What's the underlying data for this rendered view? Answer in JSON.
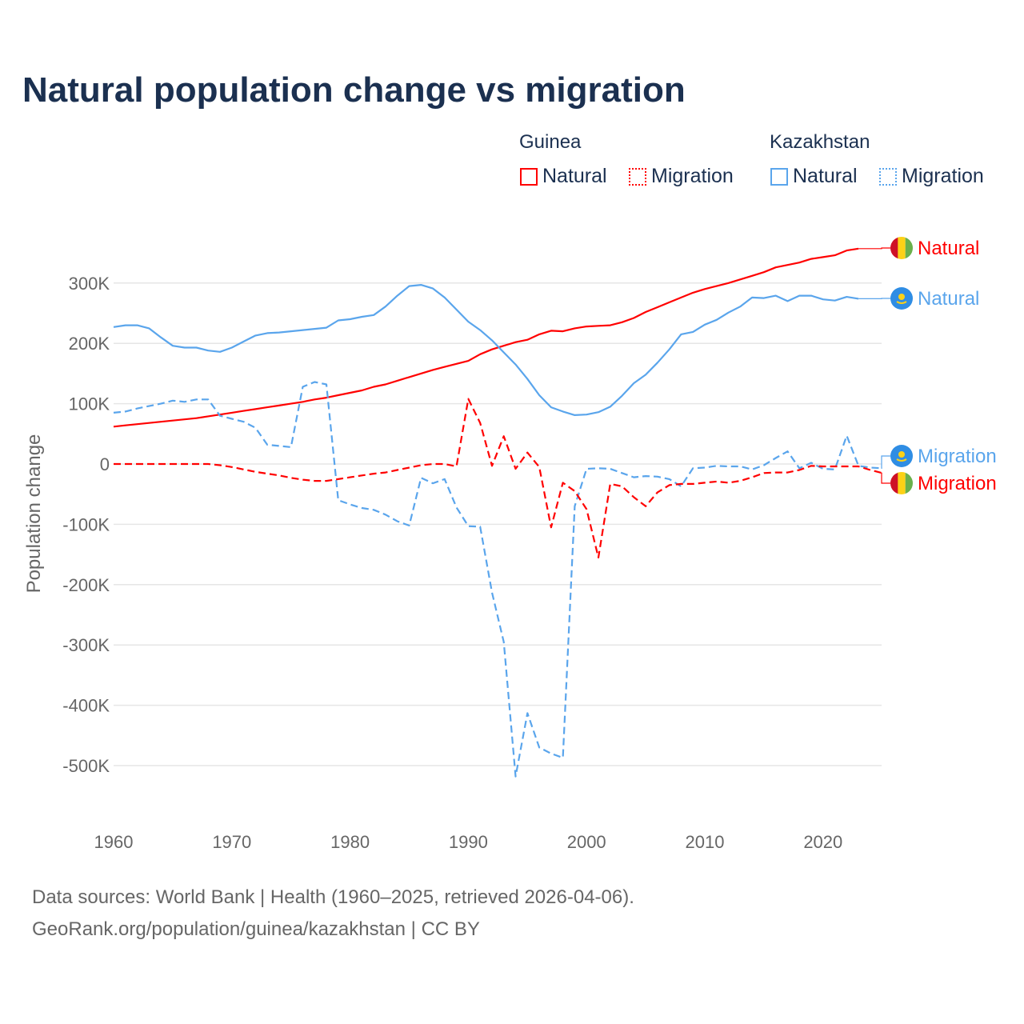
{
  "title": "Natural population change vs migration",
  "legend": {
    "groups": [
      {
        "name": "Guinea",
        "items": [
          "Natural",
          "Migration"
        ]
      },
      {
        "name": "Kazakhstan",
        "items": [
          "Natural",
          "Migration"
        ]
      }
    ]
  },
  "colors": {
    "guinea": "#ff0000",
    "kazakhstan": "#5aa5ec",
    "title": "#1b3050",
    "grid": "#e6e6e6"
  },
  "footer": {
    "line1": "Data sources: World Bank | Health (1960–2025, retrieved 2026-04-06).",
    "line2": "GeoRank.org/population/guinea/kazakhstan | CC BY"
  },
  "chart_data": {
    "type": "line",
    "title": "Natural population change vs migration",
    "xlabel": "",
    "ylabel": "Population change",
    "xlim": [
      1960,
      2025
    ],
    "ylim": [
      -600000,
      380000
    ],
    "grid": true,
    "legend_placement": "top-right",
    "x_ticks": [
      1960,
      1970,
      1980,
      1990,
      2000,
      2010,
      2020
    ],
    "y_ticks": [
      {
        "value": 300000,
        "label": "300K"
      },
      {
        "value": 200000,
        "label": "200K"
      },
      {
        "value": 100000,
        "label": "100K"
      },
      {
        "value": 0,
        "label": "0"
      },
      {
        "value": -100000,
        "label": "-100K"
      },
      {
        "value": -200000,
        "label": "-200K"
      },
      {
        "value": -300000,
        "label": "-300K"
      },
      {
        "value": -400000,
        "label": "-400K"
      },
      {
        "value": -500000,
        "label": "-500K"
      }
    ],
    "series": [
      {
        "name": "Guinea Natural",
        "country": "Guinea",
        "kind": "Natural",
        "end_label": "Natural",
        "color": "#ff0000",
        "dashed": false,
        "start": 1960,
        "values_k": [
          62,
          64,
          66,
          68,
          70,
          72,
          74,
          76,
          79,
          82,
          85,
          88,
          91,
          94,
          97,
          100,
          103,
          107,
          110,
          114,
          118,
          122,
          128,
          132,
          138,
          144,
          150,
          156,
          161,
          166,
          171,
          182,
          190,
          196,
          202,
          206,
          215,
          221,
          220,
          225,
          228,
          229,
          230,
          235,
          242,
          252,
          260,
          268,
          276,
          284,
          290,
          295,
          300,
          306,
          312,
          318,
          326,
          330,
          334,
          340,
          343,
          346,
          354,
          357
        ]
      },
      {
        "name": "Kazakhstan Natural",
        "country": "Kazakhstan",
        "kind": "Natural",
        "end_label": "Natural",
        "color": "#5aa5ec",
        "dashed": false,
        "start": 1960,
        "values_k": [
          227,
          230,
          230,
          225,
          210,
          196,
          193,
          193,
          188,
          186,
          193,
          203,
          213,
          217,
          218,
          220,
          222,
          224,
          226,
          238,
          240,
          244,
          247,
          261,
          279,
          295,
          297,
          291,
          276,
          256,
          236,
          222,
          205,
          185,
          165,
          141,
          114,
          94,
          87,
          81,
          82,
          86,
          95,
          113,
          134,
          148,
          168,
          190,
          215,
          219,
          231,
          239,
          251,
          261,
          276,
          275,
          279,
          270,
          279,
          279,
          273,
          271,
          277,
          274
        ]
      },
      {
        "name": "Kazakhstan Migration",
        "country": "Kazakhstan",
        "kind": "Migration",
        "end_label": "Migration",
        "color": "#5aa5ec",
        "dashed": true,
        "start": 1960,
        "values_k": [
          85,
          87,
          92,
          96,
          100,
          105,
          103,
          107,
          107,
          80,
          75,
          70,
          60,
          32,
          30,
          28,
          128,
          136,
          132,
          -60,
          -67,
          -73,
          -76,
          -84,
          -95,
          -102,
          -23,
          -32,
          -25,
          -72,
          -103,
          -104,
          -213,
          -295,
          -518,
          -413,
          -470,
          -480,
          -487,
          -70,
          -8,
          -7,
          -8,
          -15,
          -22,
          -20,
          -21,
          -25,
          -37,
          -7,
          -6,
          -3,
          -4,
          -4,
          -9,
          -2,
          10,
          21,
          -7,
          2,
          -8,
          -9,
          47,
          -3,
          -6,
          -7
        ]
      },
      {
        "name": "Guinea Migration",
        "country": "Guinea",
        "kind": "Migration",
        "end_label": "Migration",
        "color": "#ff0000",
        "dashed": true,
        "start": 1960,
        "values_k": [
          0,
          0,
          0,
          0,
          0,
          0,
          0,
          0,
          0,
          -2,
          -5,
          -9,
          -13,
          -16,
          -19,
          -23,
          -26,
          -28,
          -28,
          -25,
          -22,
          -19,
          -16,
          -14,
          -10,
          -6,
          -2,
          0,
          0,
          -4,
          108,
          68,
          -3,
          46,
          -8,
          19,
          -5,
          -105,
          -31,
          -45,
          -75,
          -155,
          -33,
          -37,
          -55,
          -70,
          -47,
          -35,
          -33,
          -33,
          -31,
          -29,
          -31,
          -28,
          -22,
          -15,
          -14,
          -14,
          -10,
          -3,
          -4,
          -4,
          -4,
          -4,
          -10,
          -15
        ]
      }
    ]
  }
}
